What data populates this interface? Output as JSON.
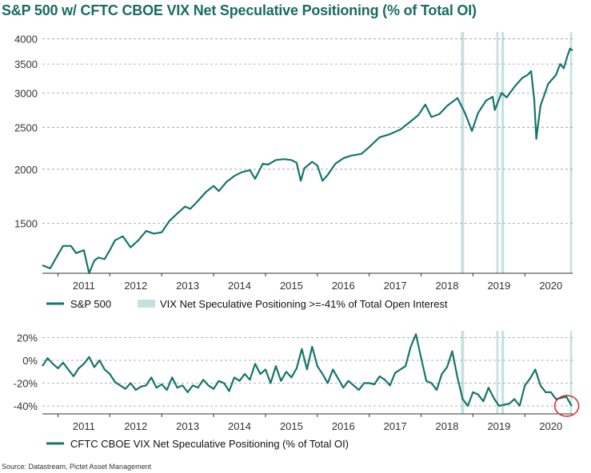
{
  "title": "S&P 500 w/ CFTC CBOE VIX Net Speculative Positioning (% of Total OI)",
  "source": "Source: Datastream, Pictet Asset Management",
  "colors": {
    "line": "#16756c",
    "shade": "#c5e1df",
    "grid": "#9a9a9a",
    "axis": "#333333",
    "title": "#1a6b64",
    "highlight_circle": "#d82a2a"
  },
  "chart_data": [
    {
      "type": "line",
      "title": "",
      "scale": "log",
      "ylim": [
        1150,
        4150
      ],
      "xlim": [
        2010.7,
        2020.92
      ],
      "yticks": [
        1500,
        2000,
        2500,
        3000,
        3500,
        4000
      ],
      "ytick_labels": [
        "1500",
        "2000",
        "2500",
        "3000",
        "3500",
        "4000"
      ],
      "xticks": [
        "2011",
        "2012",
        "2013",
        "2014",
        "2015",
        "2016",
        "2017",
        "2018",
        "2019",
        "2020"
      ],
      "grid": true,
      "legend_position": "bottom-left",
      "series": [
        {
          "name": "S&P 500",
          "x": [
            2010.7,
            2010.85,
            2011.0,
            2011.1,
            2011.25,
            2011.35,
            2011.5,
            2011.6,
            2011.7,
            2011.78,
            2011.9,
            2012.0,
            2012.1,
            2012.25,
            2012.4,
            2012.55,
            2012.7,
            2012.85,
            2013.0,
            2013.15,
            2013.3,
            2013.45,
            2013.55,
            2013.7,
            2013.85,
            2014.0,
            2014.1,
            2014.25,
            2014.4,
            2014.55,
            2014.7,
            2014.8,
            2014.95,
            2015.05,
            2015.2,
            2015.35,
            2015.5,
            2015.6,
            2015.68,
            2015.75,
            2015.9,
            2016.0,
            2016.1,
            2016.2,
            2016.35,
            2016.5,
            2016.65,
            2016.85,
            2017.0,
            2017.2,
            2017.4,
            2017.6,
            2017.8,
            2017.95,
            2018.08,
            2018.2,
            2018.35,
            2018.5,
            2018.7,
            2018.85,
            2018.98,
            2019.1,
            2019.25,
            2019.38,
            2019.42,
            2019.55,
            2019.65,
            2019.8,
            2019.95,
            2020.05,
            2020.12,
            2020.18,
            2020.22,
            2020.3,
            2020.45,
            2020.6,
            2020.68,
            2020.75,
            2020.82,
            2020.87,
            2020.92
          ],
          "values": [
            1200,
            1180,
            1270,
            1330,
            1330,
            1280,
            1300,
            1150,
            1230,
            1250,
            1240,
            1300,
            1370,
            1400,
            1320,
            1370,
            1440,
            1420,
            1430,
            1520,
            1580,
            1640,
            1620,
            1690,
            1770,
            1830,
            1780,
            1870,
            1930,
            1970,
            1990,
            1900,
            2060,
            2050,
            2100,
            2110,
            2100,
            2070,
            1880,
            2010,
            2080,
            2040,
            1880,
            1940,
            2060,
            2120,
            2150,
            2170,
            2250,
            2370,
            2410,
            2470,
            2580,
            2670,
            2820,
            2640,
            2680,
            2800,
            2920,
            2690,
            2450,
            2700,
            2880,
            2940,
            2740,
            3000,
            2930,
            3100,
            3250,
            3300,
            3370,
            2900,
            2350,
            2800,
            3150,
            3300,
            3500,
            3420,
            3650,
            3800,
            3760
          ]
        }
      ],
      "shaded_periods": {
        "name": "VIX Net Speculative Positioning >=-41% of Total Open Interest",
        "ranges": [
          [
            2018.77,
            2018.83
          ],
          [
            2019.45,
            2019.49
          ],
          [
            2019.55,
            2019.6
          ],
          [
            2020.87,
            2020.91
          ]
        ]
      }
    },
    {
      "type": "line",
      "title": "",
      "ylim": [
        -47,
        26
      ],
      "xlim": [
        2010.7,
        2020.92
      ],
      "yticks": [
        -40,
        -20,
        0,
        20
      ],
      "ytick_labels": [
        "-40%",
        "-20%",
        "0%",
        "20%"
      ],
      "xticks": [
        "2011",
        "2012",
        "2013",
        "2014",
        "2015",
        "2016",
        "2017",
        "2018",
        "2019",
        "2020"
      ],
      "grid": true,
      "legend_position": "bottom-left",
      "series": [
        {
          "name": "CFTC CBOE VIX Net Speculative Positioning (% of Total OI)",
          "x": [
            2010.7,
            2010.8,
            2010.9,
            2011.0,
            2011.1,
            2011.2,
            2011.3,
            2011.4,
            2011.5,
            2011.6,
            2011.7,
            2011.8,
            2011.9,
            2012.0,
            2012.1,
            2012.2,
            2012.3,
            2012.4,
            2012.5,
            2012.6,
            2012.7,
            2012.8,
            2012.9,
            2013.0,
            2013.1,
            2013.2,
            2013.3,
            2013.4,
            2013.5,
            2013.6,
            2013.7,
            2013.8,
            2013.9,
            2014.0,
            2014.1,
            2014.2,
            2014.3,
            2014.4,
            2014.5,
            2014.6,
            2014.7,
            2014.8,
            2014.9,
            2015.0,
            2015.1,
            2015.2,
            2015.3,
            2015.4,
            2015.5,
            2015.6,
            2015.7,
            2015.8,
            2015.9,
            2016.0,
            2016.1,
            2016.2,
            2016.3,
            2016.4,
            2016.5,
            2016.6,
            2016.7,
            2016.8,
            2016.9,
            2017.0,
            2017.1,
            2017.2,
            2017.3,
            2017.4,
            2017.5,
            2017.6,
            2017.7,
            2017.8,
            2017.9,
            2018.0,
            2018.1,
            2018.2,
            2018.3,
            2018.4,
            2018.5,
            2018.6,
            2018.7,
            2018.8,
            2018.9,
            2019.0,
            2019.1,
            2019.2,
            2019.3,
            2019.4,
            2019.5,
            2019.6,
            2019.7,
            2019.8,
            2019.9,
            2020.0,
            2020.1,
            2020.2,
            2020.3,
            2020.4,
            2020.5,
            2020.6,
            2020.7,
            2020.8,
            2020.9
          ],
          "values": [
            -5,
            2,
            -3,
            -7,
            -2,
            -8,
            -14,
            -7,
            -3,
            3,
            -6,
            0,
            -8,
            -12,
            -19,
            -22,
            -25,
            -20,
            -26,
            -23,
            -22,
            -15,
            -24,
            -21,
            -26,
            -15,
            -24,
            -22,
            -28,
            -22,
            -24,
            -17,
            -22,
            -25,
            -18,
            -20,
            -27,
            -15,
            -18,
            -12,
            -17,
            -3,
            -12,
            -8,
            -20,
            -5,
            -18,
            -10,
            -15,
            -7,
            10,
            -8,
            12,
            -5,
            -12,
            -20,
            -8,
            -16,
            -24,
            -18,
            -22,
            -26,
            -20,
            -20,
            -21,
            -14,
            -17,
            -22,
            -11,
            -8,
            -5,
            12,
            23,
            2,
            -18,
            -20,
            -26,
            -12,
            -6,
            8,
            -15,
            -34,
            -40,
            -28,
            -30,
            -36,
            -24,
            -33,
            -40,
            -39,
            -38,
            -34,
            -40,
            -22,
            -16,
            -8,
            -22,
            -28,
            -28,
            -34,
            -33,
            -32,
            -40
          ]
        }
      ],
      "shaded_periods": {
        "ranges": [
          [
            2018.77,
            2018.83
          ],
          [
            2019.45,
            2019.49
          ],
          [
            2019.55,
            2019.6
          ],
          [
            2020.87,
            2020.91
          ]
        ]
      },
      "annotation": "circle"
    }
  ]
}
